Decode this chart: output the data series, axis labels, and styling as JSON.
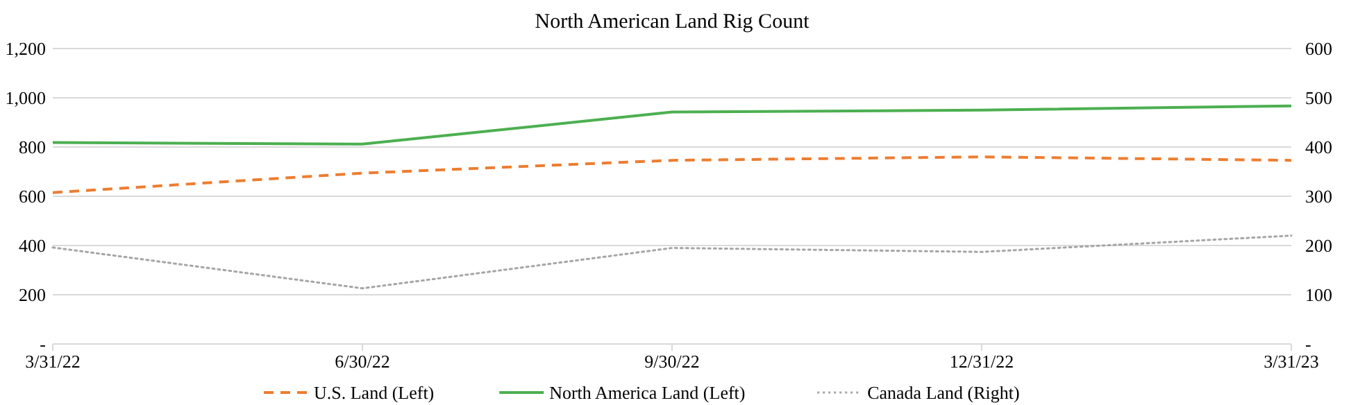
{
  "chart_data": {
    "type": "line",
    "title": "North American Land Rig Count",
    "categories": [
      "3/31/22",
      "6/30/22",
      "9/30/22",
      "12/31/22",
      "3/31/23"
    ],
    "series": [
      {
        "name": "U.S. Land (Left)",
        "color": "#ed7d31",
        "line_style": "dashed",
        "values": [
          615,
          694,
          746,
          760,
          746
        ]
      },
      {
        "name": "North America Land (Left)",
        "color": "#4caf50",
        "line_style": "solid",
        "values": [
          818,
          812,
          942,
          950,
          967
        ]
      },
      {
        "name": "Canada Land (Right)",
        "color": "#a5a5a5",
        "line_style": "dotted",
        "axis": "y2",
        "values": [
          196,
          113,
          195,
          187,
          220
        ]
      }
    ],
    "ylim": [
      0,
      1200
    ],
    "yticks": [
      {
        "value": 0,
        "label": "-"
      },
      200,
      400,
      600,
      800,
      {
        "value": 1000,
        "label": "1,000"
      },
      {
        "value": 1200,
        "label": "1,200"
      }
    ],
    "y2lim": [
      0,
      600
    ],
    "y2ticks": [
      {
        "value": 0,
        "label": "-"
      },
      100,
      200,
      300,
      400,
      500,
      600
    ],
    "grid": "y",
    "legend": "bottom",
    "marker": "none"
  }
}
